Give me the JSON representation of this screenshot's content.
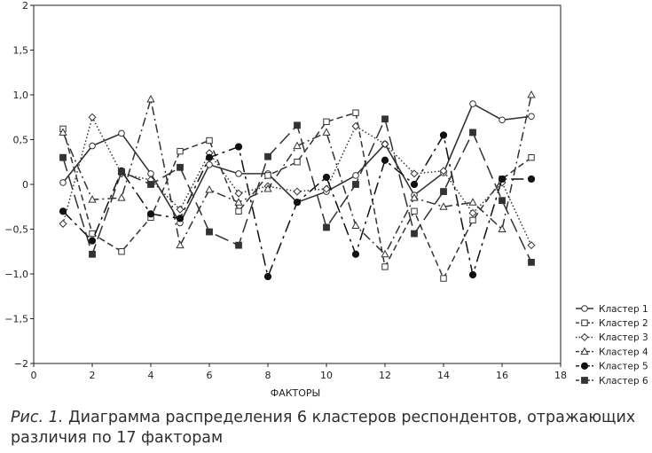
{
  "chart_data": {
    "type": "line",
    "title": "",
    "xlabel": "ФАКТОРЫ",
    "ylabel": "",
    "xlim": [
      0,
      18
    ],
    "ylim": [
      -2,
      2
    ],
    "x_ticks": [
      0,
      2,
      4,
      6,
      8,
      10,
      12,
      14,
      16,
      18
    ],
    "y_ticks": [
      -2,
      -1.5,
      -1,
      -0.5,
      0,
      0.5,
      1,
      1.5,
      2
    ],
    "x_tick_labels": [
      "0",
      "2",
      "4",
      "6",
      "8",
      "10",
      "12",
      "14",
      "16",
      "18"
    ],
    "y_tick_labels": [
      "−2",
      "−1,5",
      "−1,0",
      "−0,5",
      "0",
      "0,5",
      "1,0",
      "1,5",
      "2"
    ],
    "grid": false,
    "legend_position": "bottom-right-outside",
    "x": [
      1,
      2,
      3,
      4,
      5,
      6,
      7,
      8,
      9,
      10,
      11,
      12,
      13,
      14,
      15,
      16,
      17
    ],
    "series": [
      {
        "name": "Кластер 1",
        "marker": "circle-open",
        "dash": "solid",
        "color": "#333333",
        "values": [
          0.02,
          0.43,
          0.57,
          0.12,
          -0.43,
          0.22,
          0.12,
          0.12,
          -0.2,
          -0.08,
          0.1,
          0.45,
          -0.12,
          0.13,
          0.9,
          0.72,
          0.76
        ]
      },
      {
        "name": "Кластер 2",
        "marker": "square-open",
        "dash": "dash",
        "color": "#333333",
        "values": [
          0.62,
          -0.55,
          -0.75,
          -0.37,
          0.37,
          0.49,
          -0.3,
          0.1,
          0.25,
          0.7,
          0.8,
          -0.92,
          -0.3,
          -1.05,
          -0.4,
          0.06,
          0.3
        ]
      },
      {
        "name": "Кластер 3",
        "marker": "diamond-open",
        "dash": "dot",
        "color": "#333333",
        "values": [
          -0.44,
          0.75,
          0.12,
          0.05,
          -0.28,
          0.35,
          -0.1,
          -0.02,
          -0.08,
          -0.05,
          0.65,
          0.45,
          0.12,
          0.15,
          -0.32,
          0.02,
          -0.68
        ]
      },
      {
        "name": "Кластер 4",
        "marker": "triangle-open",
        "dash": "dashdot",
        "color": "#333333",
        "values": [
          0.58,
          -0.17,
          -0.15,
          0.95,
          -0.68,
          -0.06,
          -0.2,
          -0.05,
          0.43,
          0.58,
          -0.46,
          -0.78,
          -0.15,
          -0.25,
          -0.2,
          -0.5,
          1.0
        ]
      },
      {
        "name": "Кластер 5",
        "marker": "circle-filled",
        "dash": "longdashdot",
        "color": "#111111",
        "values": [
          -0.3,
          -0.63,
          0.15,
          -0.33,
          -0.38,
          0.3,
          0.42,
          -1.03,
          -0.2,
          0.08,
          -0.78,
          0.27,
          0.0,
          0.55,
          -1.01,
          0.06,
          0.06
        ]
      },
      {
        "name": "Кластер 6",
        "marker": "square-filled",
        "dash": "longdash",
        "color": "#333333",
        "values": [
          0.3,
          -0.78,
          0.14,
          0.0,
          0.19,
          -0.53,
          -0.68,
          0.31,
          0.66,
          -0.48,
          0.0,
          0.73,
          -0.55,
          -0.08,
          0.58,
          -0.18,
          -0.87
        ]
      }
    ]
  },
  "caption": {
    "label": "Рис. 1.",
    "text": " Диаграмма распределения 6 кластеров респондентов, отражающих различия по 17 факторам"
  }
}
